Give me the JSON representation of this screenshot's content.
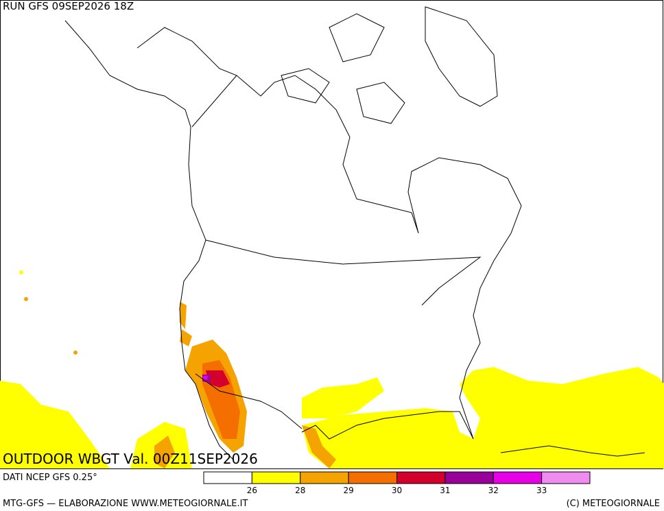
{
  "header": {
    "run": "RUN GFS 09SEP2026 18Z"
  },
  "map": {
    "title": "OUTDOOR WBGT Val. 00Z11SEP2026"
  },
  "footer": {
    "source": "DATI NCEP GFS 0.25°",
    "credit": "MTG-GFS — ELABORAZIONE WWW.METEOGIORNALE.IT",
    "copyright": "(C) METEOGIORNALE"
  },
  "colorbar": {
    "colors": [
      "#ffffff",
      "#ffff00",
      "#f5a300",
      "#f56e00",
      "#d4002c",
      "#990099",
      "#e600e6",
      "#f08cf0"
    ],
    "ticks": [
      26,
      28,
      29,
      30,
      31,
      32,
      33
    ]
  }
}
